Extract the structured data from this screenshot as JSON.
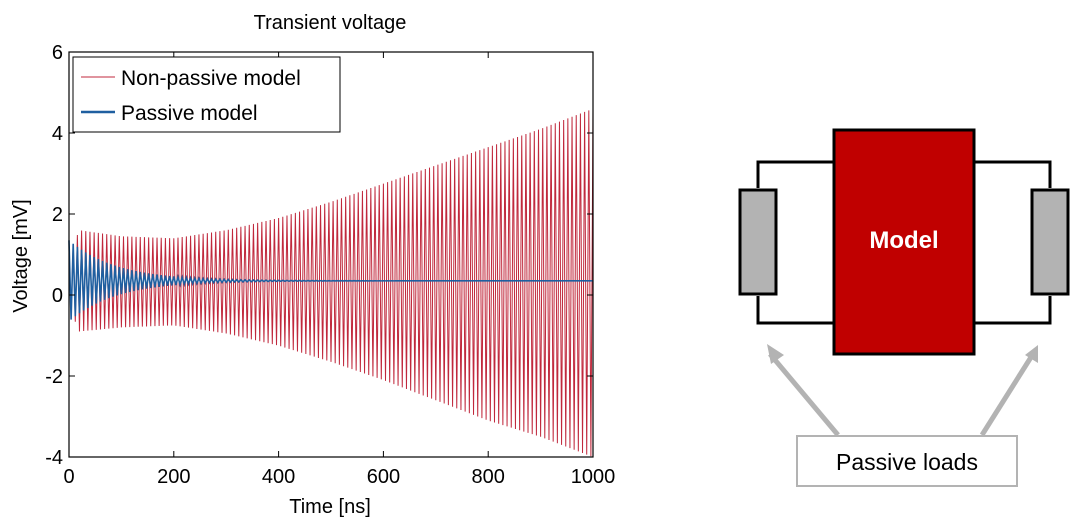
{
  "chart_data": {
    "type": "line",
    "title": "Transient voltage",
    "xlabel": "Time [ns]",
    "ylabel": "Voltage [mV]",
    "xlim": [
      0,
      1000
    ],
    "ylim": [
      -4,
      6
    ],
    "xticks": [
      "0",
      "200",
      "400",
      "600",
      "800",
      "1000"
    ],
    "yticks": [
      "-4",
      "-2",
      "0",
      "2",
      "4",
      "6"
    ],
    "grid": false,
    "legend": "top-left",
    "series": [
      {
        "name": "Non-passive model",
        "color": "#c0283c",
        "oscillation_period_ns": 8,
        "offset": 0.35,
        "envelope_x": [
          0,
          20,
          100,
          200,
          300,
          400,
          500,
          600,
          700,
          800,
          900,
          1000
        ],
        "envelope_top": [
          1.0,
          1.6,
          1.45,
          1.4,
          1.6,
          1.9,
          2.3,
          2.75,
          3.2,
          3.65,
          4.1,
          4.6
        ],
        "envelope_bottom": [
          -0.3,
          -0.9,
          -0.8,
          -0.75,
          -0.95,
          -1.25,
          -1.65,
          -2.1,
          -2.6,
          -3.1,
          -3.5,
          -4.0
        ]
      },
      {
        "name": "Passive model",
        "color": "#1f5fa0",
        "oscillation_period_ns": 8,
        "offset": 0.35,
        "peak_amplitude": 1.0,
        "decay_time_ns": 90
      }
    ]
  },
  "diagram": {
    "model_label": "Model",
    "loads_label": "Passive loads",
    "model_color": "#c00000",
    "load_color": "#b3b3b3",
    "arrow_color": "#b3b3b3"
  }
}
